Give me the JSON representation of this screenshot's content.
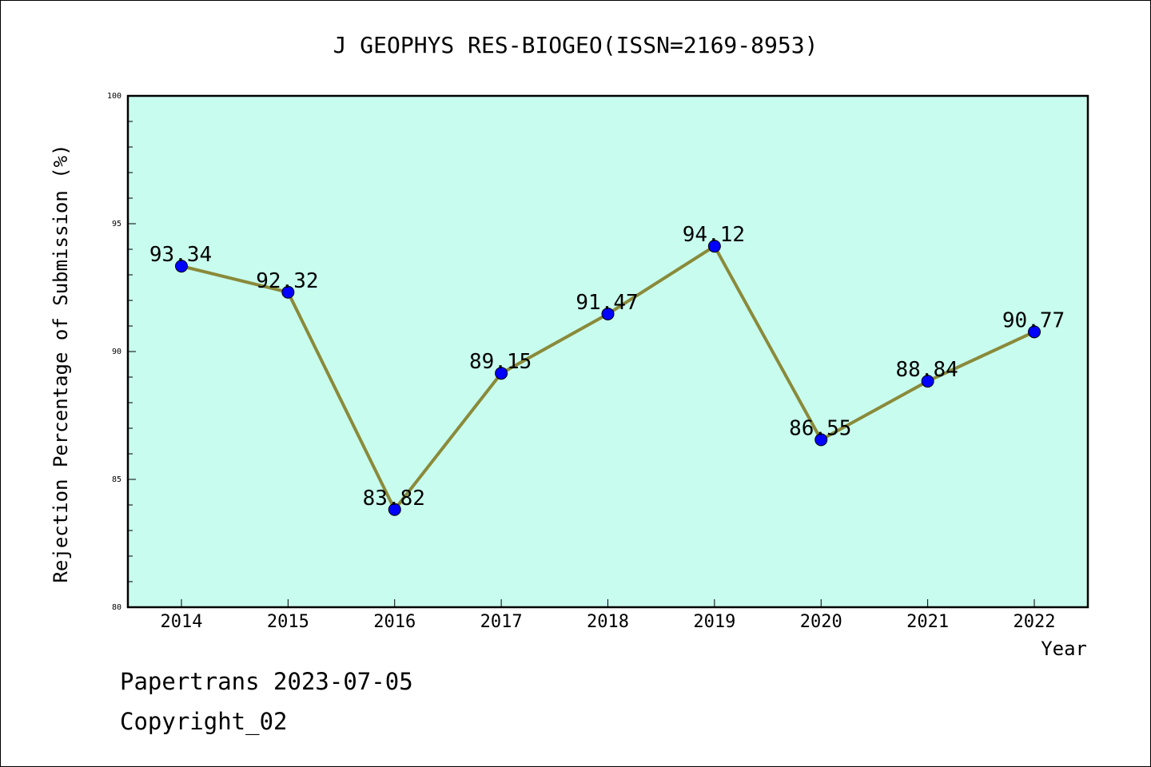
{
  "chart_data": {
    "type": "line",
    "title": "J GEOPHYS RES-BIOGEO(ISSN=2169-8953)",
    "xlabel": "Year",
    "ylabel": "Rejection Percentage of Submission (%)",
    "categories": [
      "2014",
      "2015",
      "2016",
      "2017",
      "2018",
      "2019",
      "2020",
      "2021",
      "2022"
    ],
    "series": [
      {
        "name": "Rejection Percentage",
        "values": [
          93.34,
          92.32,
          83.82,
          89.15,
          91.47,
          94.12,
          86.55,
          88.84,
          90.77
        ],
        "labels": [
          "93.34",
          "92.32",
          "83.82",
          "89.15",
          "91.47",
          "94.12",
          "86.55",
          "88.84",
          "90.77"
        ]
      }
    ],
    "ylim": [
      80,
      100
    ],
    "yticks": [
      "80",
      "85",
      "90",
      "95",
      "100"
    ],
    "grid": false,
    "colors": {
      "plot_background": "#c8fcee",
      "line": "#8a8a3a",
      "marker": "#0000ff"
    }
  },
  "footer": {
    "source": "Papertrans 2023-07-05",
    "copyright": "Copyright_02"
  }
}
